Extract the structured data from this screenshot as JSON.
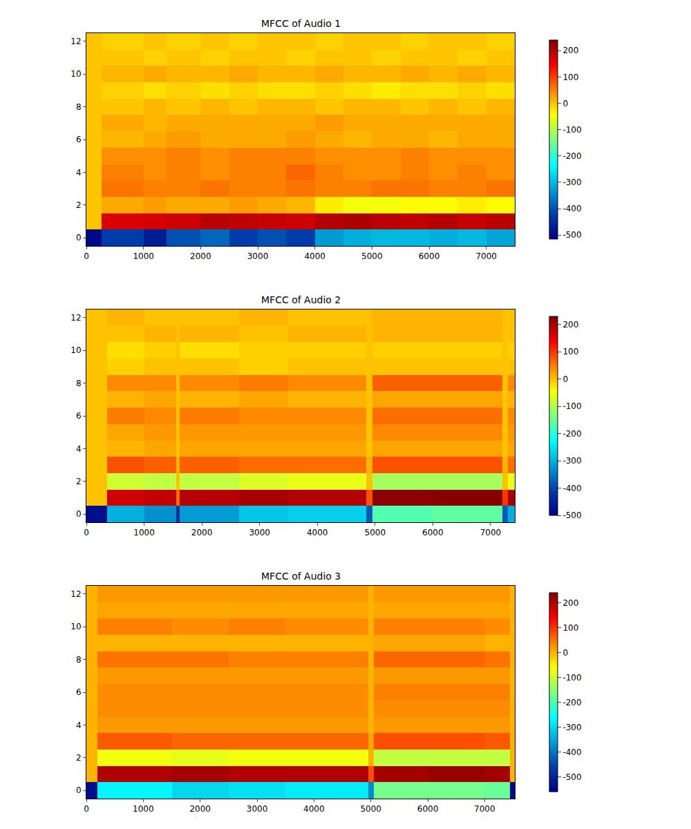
{
  "chart_data": [
    {
      "type": "heatmap",
      "title": "MFCC of Audio 1",
      "color": "Jet",
      "x_edges": [
        0,
        270,
        1000,
        1400,
        2000,
        2500,
        3000,
        3500,
        4000,
        4500,
        5000,
        5500,
        6000,
        6500,
        7000,
        7500
      ],
      "y": [
        0,
        1,
        2,
        3,
        4,
        5,
        6,
        7,
        8,
        9,
        10,
        11,
        12
      ],
      "z": [
        [
          -500,
          -420,
          -470,
          -400,
          -380,
          -420,
          -400,
          -420,
          -330,
          -310,
          -300,
          -300,
          -310,
          -300,
          -320
        ],
        [
          0,
          170,
          175,
          180,
          195,
          190,
          185,
          180,
          200,
          205,
          195,
          190,
          200,
          185,
          195
        ],
        [
          0,
          20,
          30,
          20,
          20,
          30,
          20,
          10,
          -30,
          -50,
          -50,
          -40,
          -40,
          -30,
          -40
        ],
        [
          0,
          60,
          50,
          50,
          60,
          50,
          50,
          60,
          50,
          50,
          60,
          60,
          50,
          50,
          60
        ],
        [
          0,
          50,
          40,
          50,
          40,
          50,
          50,
          70,
          50,
          40,
          40,
          50,
          40,
          50,
          40
        ],
        [
          0,
          40,
          40,
          50,
          40,
          50,
          50,
          50,
          40,
          40,
          40,
          50,
          40,
          40,
          40
        ],
        [
          0,
          10,
          20,
          30,
          20,
          20,
          20,
          30,
          20,
          10,
          20,
          20,
          10,
          20,
          20
        ],
        [
          0,
          20,
          10,
          20,
          20,
          20,
          20,
          20,
          30,
          20,
          20,
          20,
          20,
          20,
          20
        ],
        [
          0,
          0,
          10,
          0,
          10,
          0,
          10,
          10,
          0,
          10,
          10,
          0,
          10,
          0,
          10
        ],
        [
          0,
          -10,
          -20,
          -10,
          -20,
          -10,
          -20,
          -20,
          -10,
          -20,
          -30,
          -20,
          -20,
          -10,
          -20
        ],
        [
          0,
          10,
          20,
          10,
          10,
          20,
          10,
          10,
          20,
          10,
          10,
          20,
          10,
          20,
          10
        ],
        [
          0,
          0,
          -10,
          0,
          -10,
          0,
          0,
          -10,
          0,
          0,
          -10,
          0,
          0,
          -10,
          0
        ],
        [
          0,
          -10,
          0,
          -10,
          0,
          -10,
          0,
          0,
          -10,
          0,
          0,
          -10,
          0,
          0,
          -10
        ]
      ],
      "xlim": [
        0,
        7500
      ],
      "xticks": [
        0,
        1000,
        2000,
        3000,
        4000,
        5000,
        6000,
        7000
      ],
      "ylim": [
        -0.5,
        12.5
      ],
      "yticks": [
        0,
        2,
        4,
        6,
        8,
        10,
        12
      ],
      "colorbar": {
        "range": [
          -515,
          240
        ],
        "ticks": [
          -500,
          -400,
          -300,
          -200,
          -100,
          0,
          100,
          200
        ]
      }
    },
    {
      "type": "heatmap",
      "title": "MFCC of Audio 2",
      "color": "Jet",
      "x_edges": [
        0,
        360,
        1000,
        1550,
        1620,
        2650,
        3500,
        4850,
        4950,
        6000,
        7200,
        7300,
        7420
      ],
      "y": [
        0,
        1,
        2,
        3,
        4,
        5,
        6,
        7,
        8,
        9,
        10,
        11,
        12
      ],
      "z": [
        [
          -480,
          -300,
          -330,
          -430,
          -320,
          -280,
          -270,
          -380,
          -170,
          -160,
          -380,
          -300
        ],
        [
          0,
          170,
          180,
          60,
          190,
          200,
          190,
          80,
          220,
          225,
          100,
          200
        ],
        [
          0,
          -80,
          -90,
          0,
          -90,
          -70,
          -60,
          0,
          -110,
          -110,
          0,
          -60
        ],
        [
          0,
          80,
          70,
          10,
          70,
          60,
          60,
          10,
          80,
          80,
          10,
          60
        ],
        [
          0,
          10,
          20,
          0,
          20,
          20,
          20,
          0,
          20,
          20,
          0,
          20
        ],
        [
          0,
          20,
          30,
          0,
          30,
          30,
          30,
          0,
          40,
          40,
          0,
          30
        ],
        [
          0,
          50,
          40,
          0,
          50,
          40,
          40,
          0,
          60,
          60,
          0,
          40
        ],
        [
          0,
          10,
          20,
          0,
          10,
          20,
          10,
          0,
          20,
          20,
          0,
          10
        ],
        [
          0,
          40,
          40,
          0,
          40,
          50,
          40,
          0,
          70,
          70,
          0,
          40
        ],
        [
          0,
          -10,
          0,
          0,
          0,
          -10,
          0,
          0,
          0,
          0,
          0,
          0
        ],
        [
          0,
          -20,
          -10,
          0,
          -20,
          -10,
          -10,
          0,
          -10,
          -10,
          0,
          -10
        ],
        [
          0,
          0,
          10,
          0,
          10,
          0,
          10,
          0,
          10,
          10,
          0,
          0
        ],
        [
          0,
          10,
          0,
          0,
          0,
          10,
          0,
          0,
          10,
          10,
          0,
          0
        ]
      ],
      "xlim": [
        0,
        7420
      ],
      "xticks": [
        0,
        1000,
        2000,
        3000,
        4000,
        5000,
        6000,
        7000
      ],
      "ylim": [
        -0.5,
        12.5
      ],
      "yticks": [
        0,
        2,
        4,
        6,
        8,
        10,
        12
      ],
      "colorbar": {
        "range": [
          -500,
          230
        ],
        "ticks": [
          -500,
          -400,
          -300,
          -200,
          -100,
          0,
          100,
          200
        ]
      }
    },
    {
      "type": "heatmap",
      "title": "MFCC of Audio 3",
      "color": "Jet",
      "x_edges": [
        0,
        200,
        1500,
        2500,
        3500,
        4950,
        5050,
        6000,
        7000,
        7440,
        7530
      ],
      "y": [
        0,
        1,
        2,
        3,
        4,
        5,
        6,
        7,
        8,
        9,
        10,
        11,
        12
      ],
      "z": [
        [
          -540,
          -270,
          -300,
          -290,
          -280,
          -380,
          -170,
          -170,
          -180,
          -540
        ],
        [
          0,
          200,
          210,
          200,
          200,
          80,
          210,
          220,
          210,
          0
        ],
        [
          0,
          -70,
          -80,
          -70,
          -70,
          0,
          -110,
          -110,
          -110,
          0
        ],
        [
          0,
          70,
          60,
          60,
          60,
          10,
          80,
          80,
          70,
          0
        ],
        [
          0,
          20,
          20,
          20,
          20,
          0,
          20,
          20,
          20,
          0
        ],
        [
          0,
          30,
          30,
          30,
          30,
          0,
          30,
          30,
          30,
          0
        ],
        [
          0,
          30,
          30,
          30,
          30,
          0,
          40,
          40,
          40,
          0
        ],
        [
          0,
          20,
          20,
          20,
          20,
          0,
          20,
          20,
          20,
          0
        ],
        [
          0,
          50,
          50,
          40,
          40,
          0,
          60,
          60,
          50,
          0
        ],
        [
          0,
          0,
          0,
          0,
          0,
          0,
          10,
          10,
          0,
          0
        ],
        [
          0,
          40,
          30,
          40,
          30,
          0,
          40,
          40,
          30,
          0
        ],
        [
          0,
          10,
          10,
          10,
          10,
          0,
          10,
          10,
          10,
          0
        ],
        [
          0,
          20,
          20,
          20,
          20,
          0,
          20,
          20,
          20,
          0
        ]
      ],
      "xlim": [
        0,
        7530
      ],
      "xticks": [
        0,
        1000,
        2000,
        3000,
        4000,
        5000,
        6000,
        7000
      ],
      "ylim": [
        -0.5,
        12.5
      ],
      "yticks": [
        0,
        2,
        4,
        6,
        8,
        10,
        12
      ],
      "colorbar": {
        "range": [
          -560,
          240
        ],
        "ticks": [
          -500,
          -400,
          -300,
          -200,
          -100,
          0,
          100,
          200
        ]
      }
    }
  ]
}
